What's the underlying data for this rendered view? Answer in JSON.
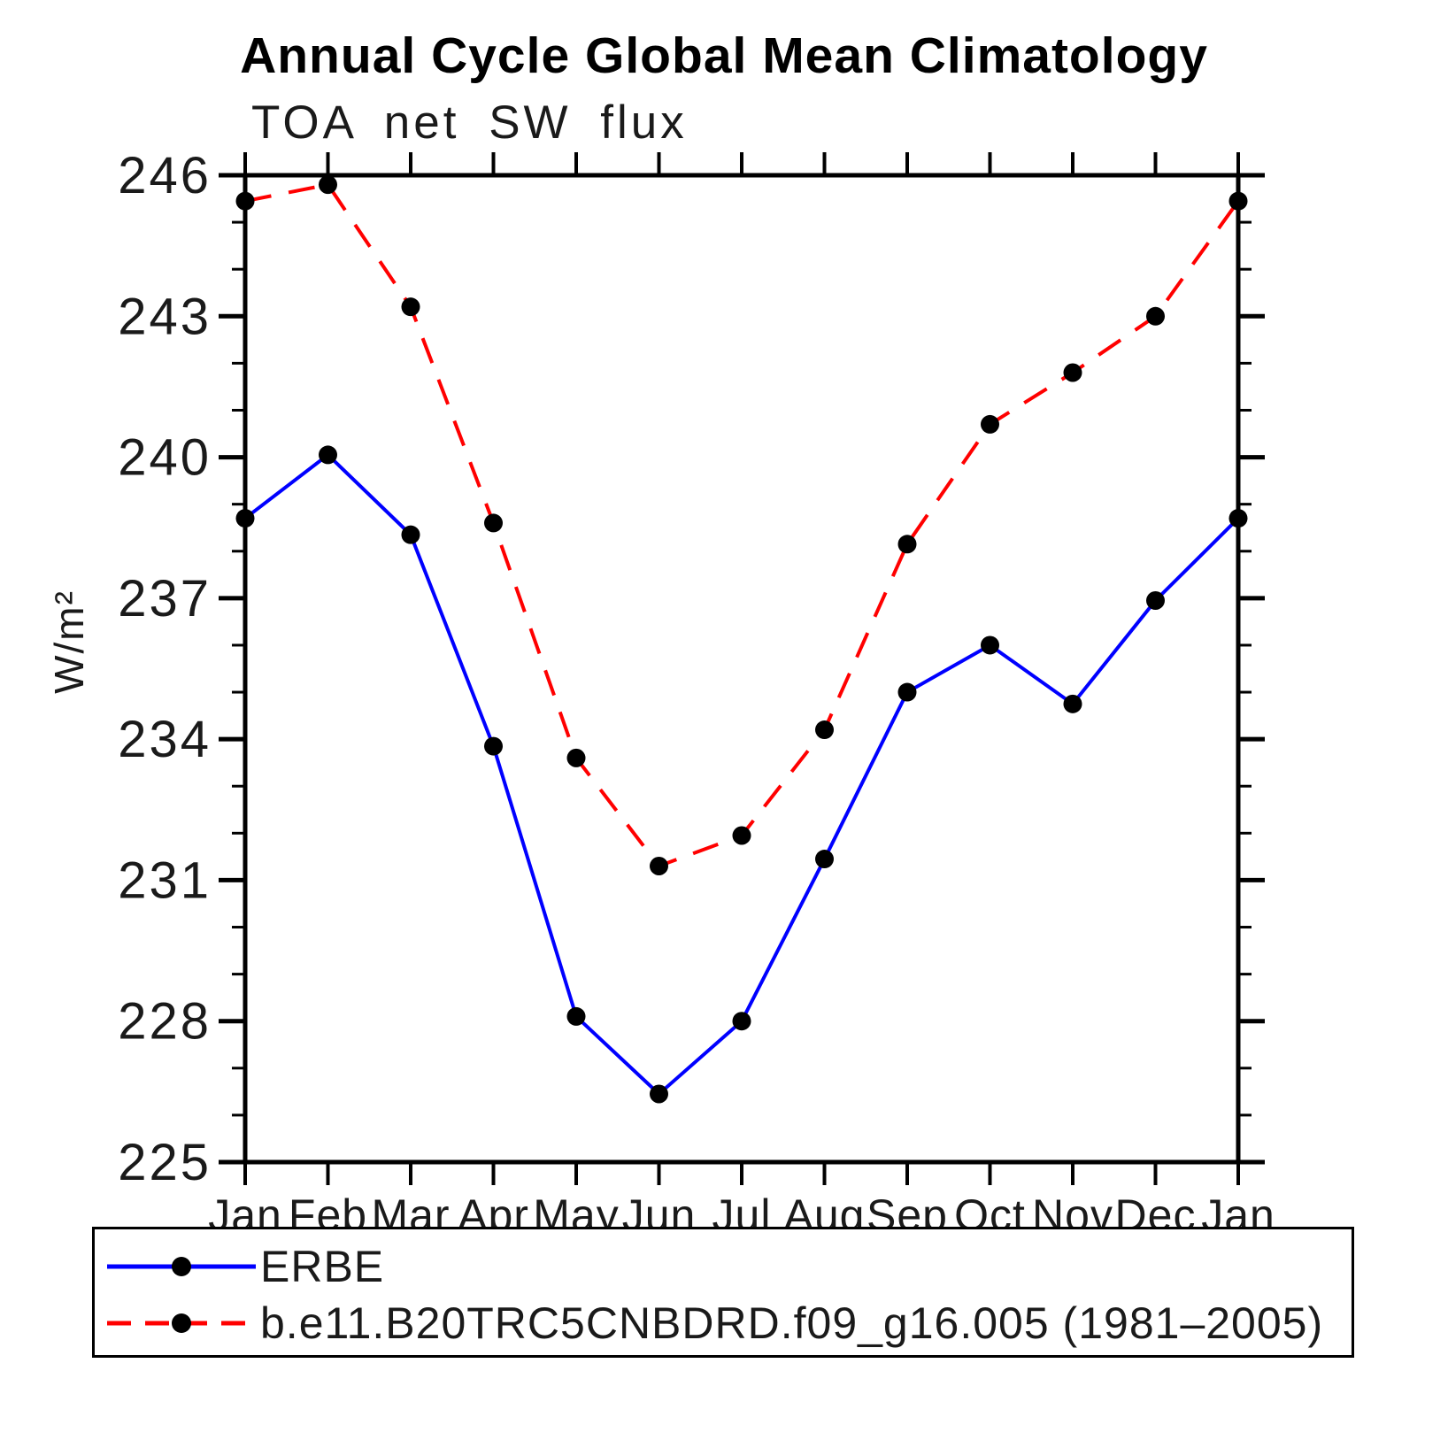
{
  "header": {
    "title": "Annual Cycle Global Mean Climatology",
    "subtitle": "TOA net SW flux"
  },
  "chart_data": {
    "type": "line",
    "title": "Annual Cycle Global Mean Climatology",
    "subtitle": "TOA net SW flux",
    "ylabel": "W/m²",
    "xlabel": "",
    "x_categories": [
      "Jan",
      "Feb",
      "Mar",
      "Apr",
      "May",
      "Jun",
      "Jul",
      "Aug",
      "Sep",
      "Oct",
      "Nov",
      "Dec",
      "Jan"
    ],
    "ylim": [
      225,
      246
    ],
    "ytick_major": [
      225,
      228,
      231,
      234,
      237,
      240,
      243,
      246
    ],
    "ytick_minor_step": 1,
    "grid": false,
    "legend_position": "bottom-left-box",
    "series": [
      {
        "name": "ERBE",
        "color": "#0000ff",
        "style": "solid",
        "marker": "circle",
        "marker_color": "#000000",
        "values": [
          238.7,
          240.05,
          238.35,
          233.85,
          228.1,
          226.45,
          228.0,
          231.45,
          235.0,
          236.0,
          234.75,
          236.95,
          238.7
        ]
      },
      {
        "name": "b.e11.B20TRC5CNBDRD.f09_g16.005 (1981–2005)",
        "color": "#ff0000",
        "style": "dashed",
        "marker": "circle",
        "marker_color": "#000000",
        "values": [
          245.45,
          245.8,
          243.2,
          238.6,
          233.6,
          231.3,
          231.95,
          234.2,
          238.15,
          240.7,
          241.8,
          243.0,
          245.45
        ]
      }
    ]
  }
}
